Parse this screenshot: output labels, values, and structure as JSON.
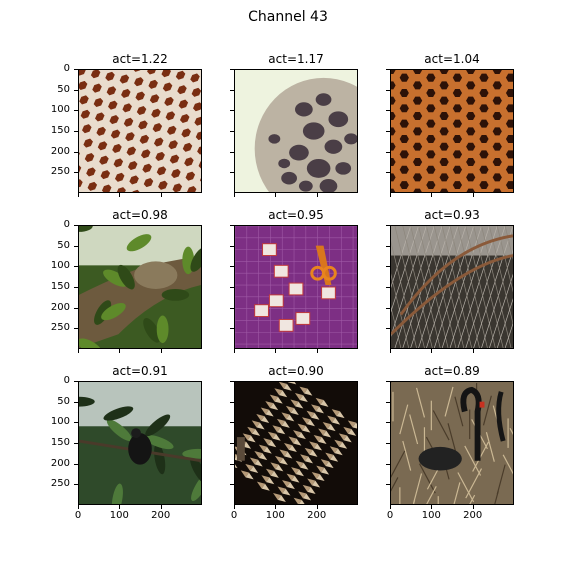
{
  "figure": {
    "title": "Channel 43"
  },
  "chart_data": {
    "type": "image_grid",
    "title": "Channel 43",
    "rows": 3,
    "cols": 3,
    "image_extent": [
      0,
      300
    ],
    "y_ticks": [
      0,
      50,
      100,
      150,
      200,
      250
    ],
    "x_ticks": [
      0,
      100,
      200
    ],
    "panels": [
      {
        "title": "act=1.22",
        "act": 1.22,
        "content": "brick-lattice"
      },
      {
        "title": "act=1.17",
        "act": 1.17,
        "content": "sponge-holes"
      },
      {
        "title": "act=1.04",
        "act": 1.04,
        "content": "honeycomb-dark"
      },
      {
        "title": "act=0.98",
        "act": 0.98,
        "content": "sloth-foliage"
      },
      {
        "title": "act=0.95",
        "act": 0.95,
        "content": "craft-mat"
      },
      {
        "title": "act=0.93",
        "act": 0.93,
        "content": "wire-mesh"
      },
      {
        "title": "act=0.91",
        "act": 0.91,
        "content": "bird-jungle"
      },
      {
        "title": "act=0.90",
        "act": 0.9,
        "content": "spiky-rows"
      },
      {
        "title": "act=0.89",
        "act": 0.89,
        "content": "swans-reeds"
      }
    ]
  }
}
